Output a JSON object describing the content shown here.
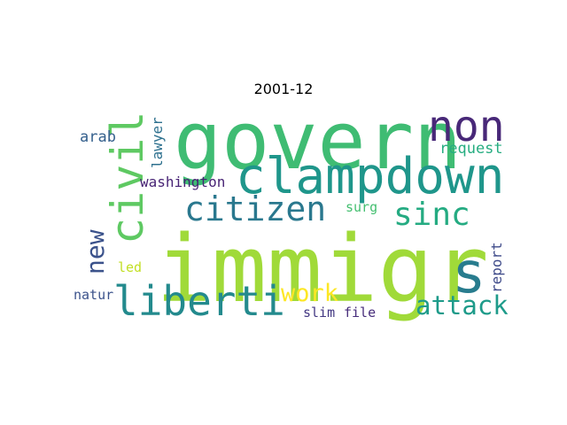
{
  "chart_data": {
    "type": "wordcloud",
    "title": "2001-12",
    "words": [
      {
        "text": "immigr",
        "weight": 1.0,
        "color": "#a0da39",
        "orient": "h"
      },
      {
        "text": "govern",
        "weight": 0.9,
        "color": "#3fbc73",
        "orient": "h"
      },
      {
        "text": "clampdown",
        "weight": 0.58,
        "color": "#1f968b",
        "orient": "h"
      },
      {
        "text": "s",
        "weight": 0.55,
        "color": "#287c8e",
        "orient": "h"
      },
      {
        "text": "civil",
        "weight": 0.52,
        "color": "#5ec962",
        "orient": "v"
      },
      {
        "text": "non",
        "weight": 0.48,
        "color": "#482878",
        "orient": "h"
      },
      {
        "text": "liberti",
        "weight": 0.46,
        "color": "#238a8d",
        "orient": "h"
      },
      {
        "text": "citizen",
        "weight": 0.38,
        "color": "#2a788e",
        "orient": "h"
      },
      {
        "text": "sinc",
        "weight": 0.36,
        "color": "#25ab82",
        "orient": "h"
      },
      {
        "text": "new",
        "weight": 0.3,
        "color": "#3b528b",
        "orient": "v"
      },
      {
        "text": "attack",
        "weight": 0.3,
        "color": "#1e9b8a",
        "orient": "h"
      },
      {
        "text": "work",
        "weight": 0.28,
        "color": "#fde725",
        "orient": "h"
      },
      {
        "text": "washington",
        "weight": 0.18,
        "color": "#482475",
        "orient": "h"
      },
      {
        "text": "lawyer",
        "weight": 0.17,
        "color": "#2d708e",
        "orient": "v"
      },
      {
        "text": "report",
        "weight": 0.17,
        "color": "#3e4a89",
        "orient": "v"
      },
      {
        "text": "arab",
        "weight": 0.17,
        "color": "#35608d",
        "orient": "h"
      },
      {
        "text": "request",
        "weight": 0.17,
        "color": "#26ad81",
        "orient": "h"
      },
      {
        "text": "slim",
        "weight": 0.16,
        "color": "#443983",
        "orient": "h"
      },
      {
        "text": "file",
        "weight": 0.16,
        "color": "#472d7b",
        "orient": "h"
      },
      {
        "text": "natur",
        "weight": 0.16,
        "color": "#3b528b",
        "orient": "h"
      },
      {
        "text": "led",
        "weight": 0.16,
        "color": "#c2df23",
        "orient": "h"
      },
      {
        "text": "surg",
        "weight": 0.15,
        "color": "#44bf70",
        "orient": "h"
      }
    ]
  }
}
